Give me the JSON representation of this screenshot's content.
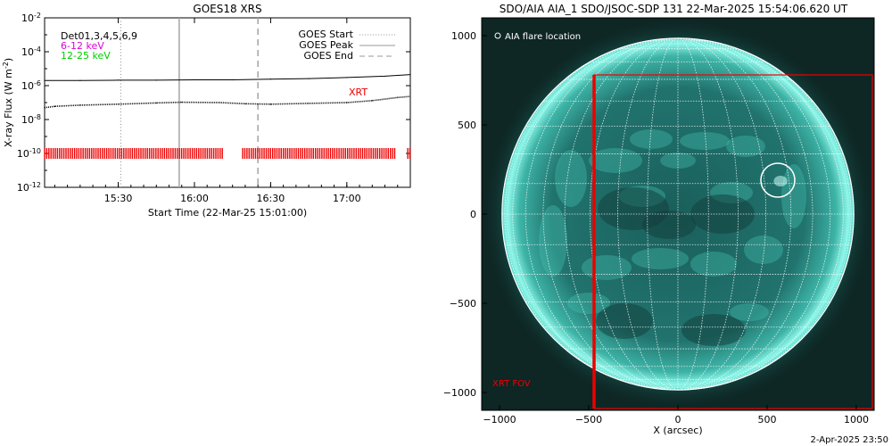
{
  "left_panel": {
    "title": "GOES18 XRS",
    "ylabel": "X-ray Flux (W m",
    "ylabel_sup": "-2",
    "ylabel_end": ")",
    "xlabel": "Start Time (22-Mar-25 15:01:00)",
    "det_label": "Det01,3,4,5,6,9",
    "band_low_label": "6-12 keV",
    "band_high_label": "12-25 keV",
    "xrt_label": "XRT",
    "legend": {
      "start": "GOES Start",
      "peak": "GOES Peak",
      "end": "GOES End"
    }
  },
  "right_panel": {
    "title": "SDO/AIA AIA_1 SDO/JSOC-SDP 131 22-Mar-2025 15:54:06.620 UT",
    "legend_label": "AIA flare location",
    "fov_label": "XRT FOV",
    "xlabel": "X (arcsec)",
    "footer": "2-Apr-2025 23:50"
  },
  "colors": {
    "xrt": "#ee0000",
    "band_low": "#dd00dd",
    "band_high": "#00cc00",
    "sun_core": "#1f6e69",
    "sun_limb": "#7ff5e6"
  },
  "chart_data": [
    {
      "type": "line",
      "title": "GOES18 XRS",
      "xlabel": "Start Time (22-Mar-25 15:01:00)",
      "ylabel": "X-ray Flux (W m^-2)",
      "x_scale": "time",
      "y_scale": "log",
      "xlim": [
        "15:01:00",
        "17:25:00"
      ],
      "ylim": [
        1e-12,
        0.01
      ],
      "x_ticks": [
        "15:30",
        "16:00",
        "16:30",
        "17:00"
      ],
      "y_ticks": [
        {
          "value": 0.01,
          "mant": "10",
          "exp": "-2"
        },
        {
          "value": 0.0001,
          "mant": "10",
          "exp": "-4"
        },
        {
          "value": 1e-06,
          "mant": "10",
          "exp": "-6"
        },
        {
          "value": 1e-08,
          "mant": "10",
          "exp": "-8"
        },
        {
          "value": 1e-10,
          "mant": "10",
          "exp": "-10"
        },
        {
          "value": 1e-12,
          "mant": "10",
          "exp": "-12"
        }
      ],
      "series": [
        {
          "name": "",
          "style": "solid",
          "x": [
            "15:01",
            "15:15",
            "15:30",
            "15:45",
            "16:00",
            "16:15",
            "16:30",
            "16:45",
            "17:00",
            "17:15",
            "17:25"
          ],
          "y": [
            2e-06,
            2e-06,
            2.1e-06,
            2.1e-06,
            2.2e-06,
            2.2e-06,
            2.4e-06,
            2.6e-06,
            3e-06,
            3.6e-06,
            4.5e-06
          ]
        },
        {
          "name": "",
          "style": "dotted",
          "x": [
            "15:01",
            "15:05",
            "15:15",
            "15:30",
            "15:45",
            "15:55",
            "16:10",
            "16:20",
            "16:30",
            "16:45",
            "17:00",
            "17:10",
            "17:20",
            "17:25"
          ],
          "y": [
            5e-08,
            6e-08,
            7e-08,
            8e-08,
            9.5e-08,
            1.05e-07,
            1e-07,
            8.5e-08,
            8e-08,
            9e-08,
            1e-07,
            1.3e-07,
            2e-07,
            2.3e-07
          ]
        }
      ],
      "events": {
        "goes_start": "15:31",
        "goes_peak": "15:54",
        "goes_end": "16:25"
      },
      "xrt_coverage": {
        "level": 1e-10,
        "intervals": [
          [
            "15:01",
            "16:11"
          ],
          [
            "16:19",
            "17:19"
          ],
          [
            "17:24",
            "17:25"
          ]
        ]
      }
    },
    {
      "type": "image",
      "title": "SDO/AIA AIA_1 SDO/JSOC-SDP 131 22-Mar-2025 15:54:06.620 UT",
      "xlabel": "X (arcsec)",
      "xlim": [
        -1100,
        1100
      ],
      "ylim": [
        -1100,
        1100
      ],
      "x_ticks": [
        -1000,
        -500,
        0,
        500,
        1000
      ],
      "y_ticks": [
        -1000,
        -500,
        0,
        500,
        1000
      ],
      "sun_radius": 986,
      "flare_location": {
        "x": 560,
        "y": 190,
        "r": 95
      },
      "xrt_fov": {
        "x": [
          -470,
          1090
        ],
        "y": [
          -1090,
          780
        ]
      }
    }
  ]
}
